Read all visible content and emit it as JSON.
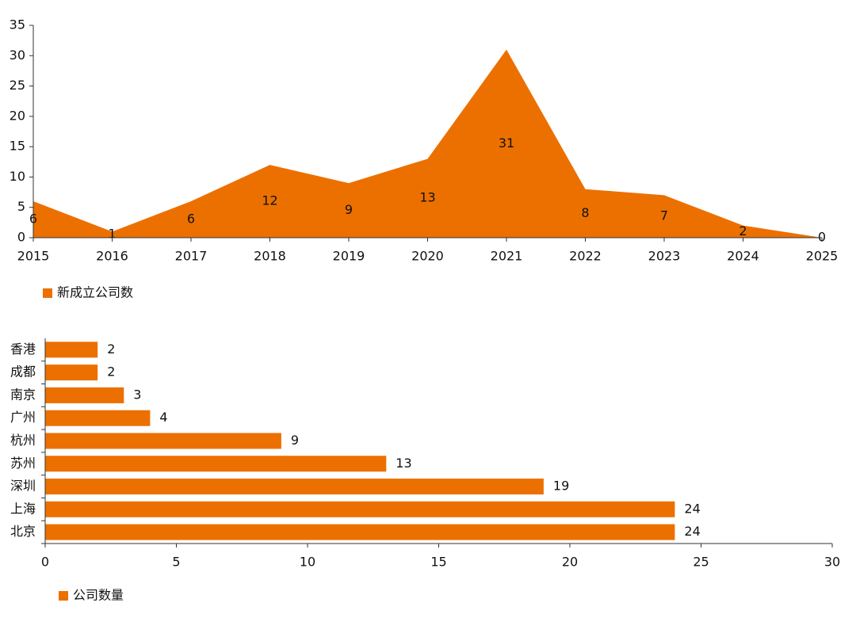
{
  "chart_data": [
    {
      "type": "area",
      "x": [
        2015,
        2016,
        2017,
        2018,
        2019,
        2020,
        2021,
        2022,
        2023,
        2024,
        2025
      ],
      "series": [
        {
          "name": "新成立公司数",
          "color": "#ec7000",
          "values": [
            6,
            1,
            6,
            12,
            9,
            13,
            31,
            8,
            7,
            2,
            0
          ]
        }
      ],
      "xlim": [
        2015,
        2025
      ],
      "xticks": [
        2015,
        2016,
        2017,
        2018,
        2019,
        2020,
        2021,
        2022,
        2023,
        2024,
        2025
      ],
      "ylim": [
        0,
        35
      ],
      "yticks": [
        0,
        5,
        10,
        15,
        20,
        25,
        30,
        35
      ],
      "legend": "bottom-left"
    },
    {
      "type": "hbar",
      "categories": [
        "北京",
        "上海",
        "深圳",
        "苏州",
        "杭州",
        "广州",
        "南京",
        "成都",
        "香港"
      ],
      "series": [
        {
          "name": "公司数量",
          "color": "#ec7000",
          "values": [
            24,
            24,
            19,
            13,
            9,
            4,
            3,
            2,
            2
          ]
        }
      ],
      "xlim": [
        0,
        30
      ],
      "xticks": [
        0,
        5,
        10,
        15,
        20,
        25,
        30
      ],
      "legend": "bottom-left"
    }
  ]
}
